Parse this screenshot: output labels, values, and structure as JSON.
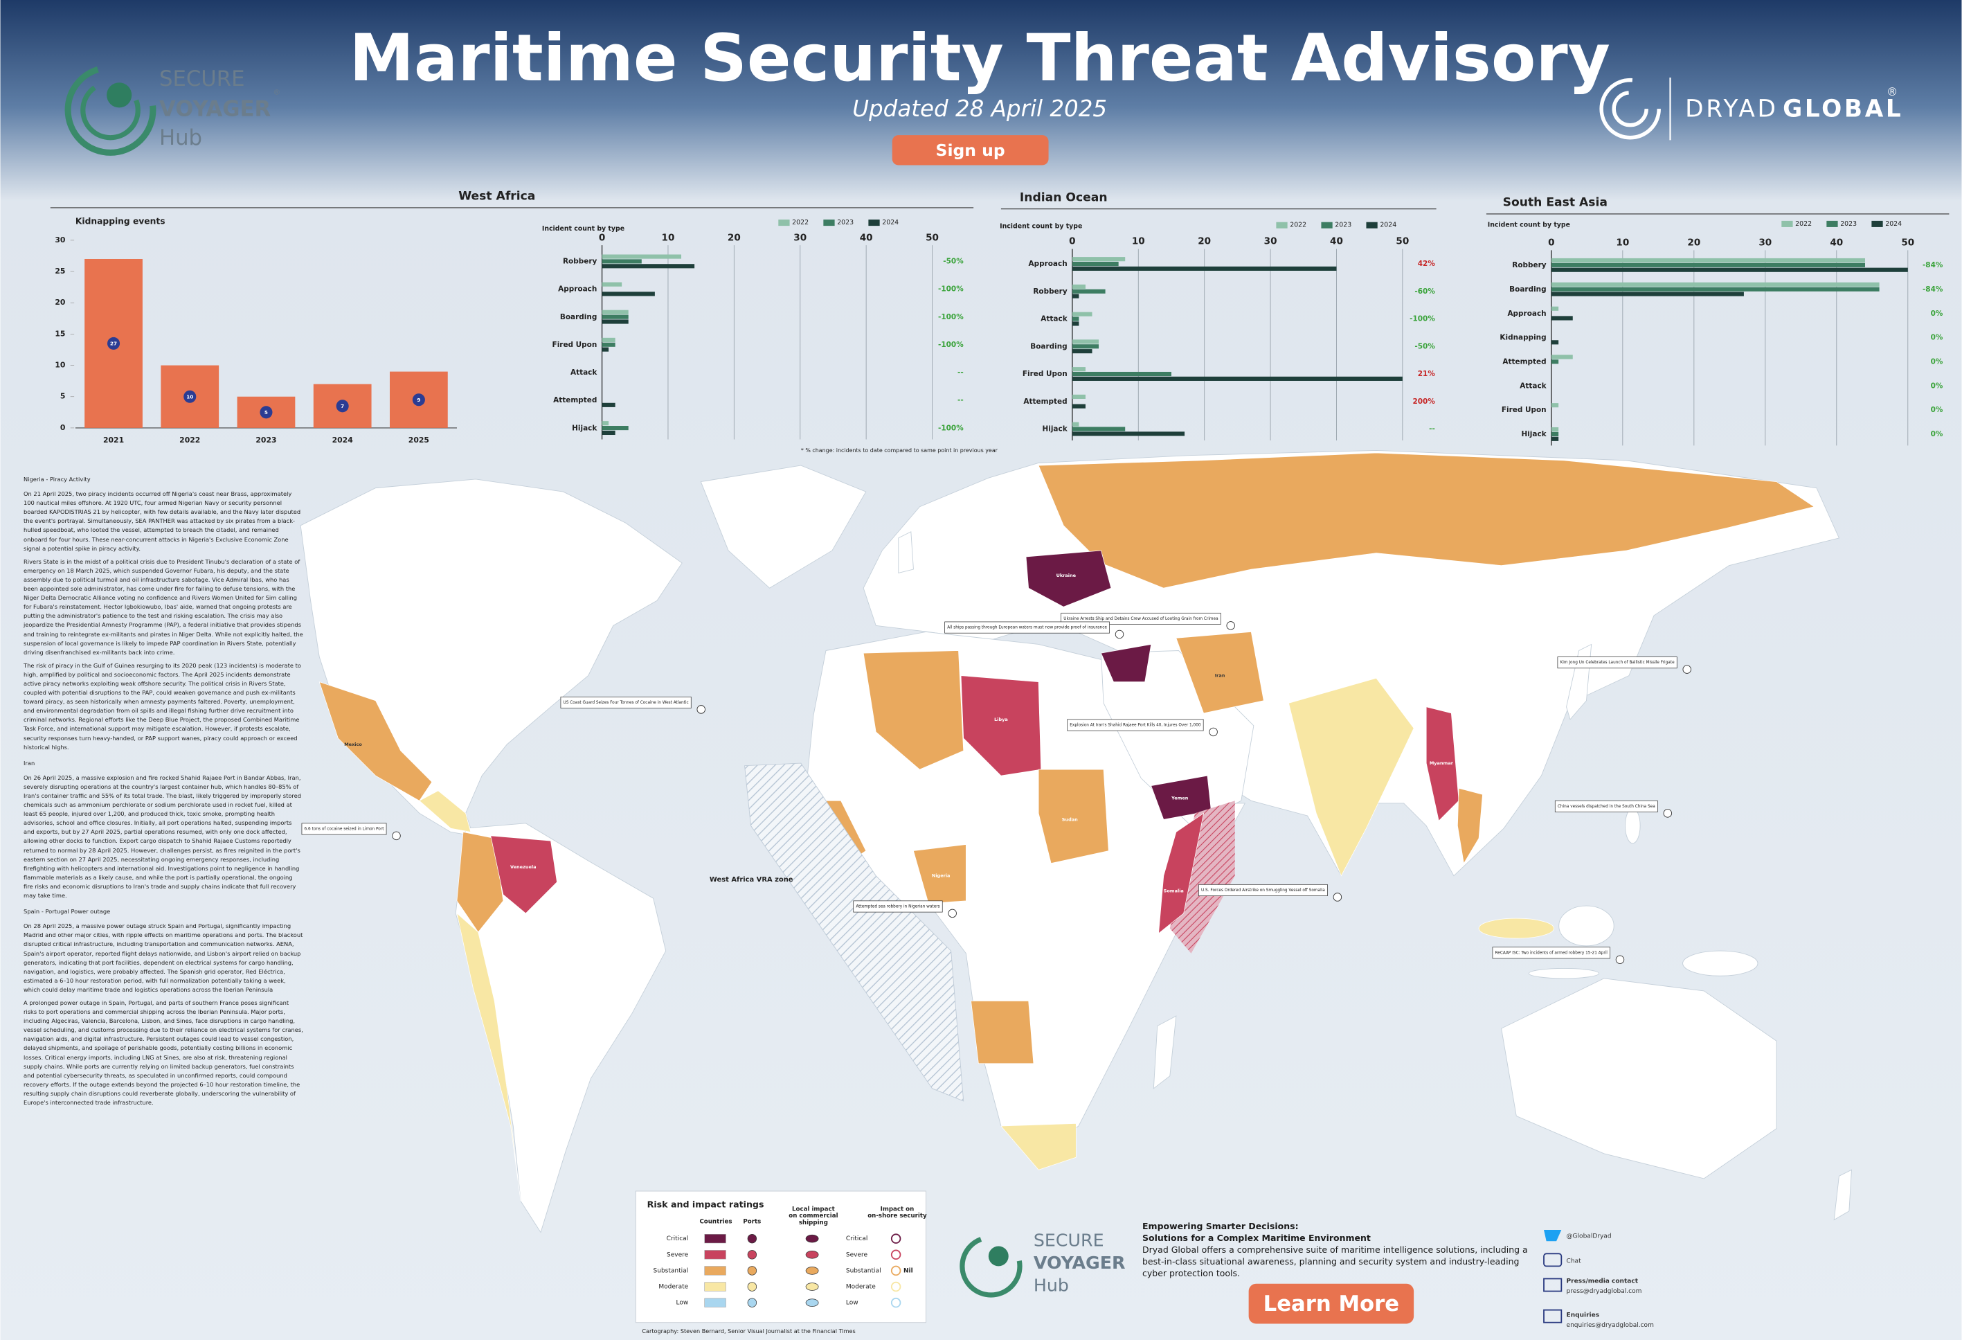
{
  "header": {
    "title": "Maritime Security Threat Advisory",
    "subtitle": "Updated 28 April 2025",
    "button": "Sign up",
    "left_logo": {
      "line1": "SECURE",
      "line2": "VOYAGER",
      "line3": "Hub",
      "mark": "®"
    },
    "right_logo": {
      "name": "DRYAD",
      "name2": "GLOBAL",
      "mark": "®"
    }
  },
  "chart_data": [
    {
      "type": "bar",
      "title": "Kidnapping events",
      "categories": [
        "2021",
        "2022",
        "2023",
        "2024",
        "2025"
      ],
      "values": [
        27,
        10,
        5,
        7,
        9
      ],
      "color": "#e8734f",
      "label_color": "#2b3c93",
      "ylim": [
        0,
        30
      ],
      "yticks": [
        0,
        5,
        10,
        15,
        20,
        25,
        30
      ]
    },
    {
      "type": "hbar",
      "title": "West Africa",
      "subtitle": "Incident count by type",
      "categories": [
        "Robbery",
        "Approach",
        "Boarding",
        "Fired Upon",
        "Attack",
        "Attempted",
        "Hijack"
      ],
      "series": [
        {
          "name": "2022",
          "color": "#8fc1a9",
          "values": [
            12,
            3,
            4,
            2,
            0,
            0,
            1
          ]
        },
        {
          "name": "2023",
          "color": "#3d7d62",
          "values": [
            6,
            0,
            4,
            2,
            0,
            0,
            4
          ]
        },
        {
          "name": "2024",
          "color": "#1e3f3a",
          "values": [
            14,
            8,
            4,
            1,
            0,
            2,
            2
          ]
        }
      ],
      "xlim": [
        0,
        50
      ],
      "xticks": [
        0,
        10,
        20,
        30,
        40,
        50
      ],
      "grid": true,
      "changes": [
        "-50%",
        "-100%",
        "-100%",
        "-100%",
        "--",
        "--",
        "-100%"
      ],
      "change_colors": [
        "#3aa33a",
        "#3aa33a",
        "#3aa33a",
        "#3aa33a",
        "#3aa33a",
        "#3aa33a",
        "#3aa33a"
      ]
    },
    {
      "type": "hbar",
      "title": "Indian Ocean",
      "subtitle": "Incident count by type",
      "categories": [
        "Approach",
        "Robbery",
        "Attack",
        "Boarding",
        "Fired Upon",
        "Attempted",
        "Hijack"
      ],
      "series": [
        {
          "name": "2022",
          "color": "#8fc1a9",
          "values": [
            8,
            2,
            3,
            4,
            2,
            2,
            1
          ]
        },
        {
          "name": "2023",
          "color": "#3d7d62",
          "values": [
            7,
            5,
            1,
            4,
            15,
            0,
            8
          ]
        },
        {
          "name": "2024",
          "color": "#1e3f3a",
          "values": [
            40,
            1,
            1,
            3,
            50,
            2,
            17
          ]
        }
      ],
      "xlim": [
        0,
        50
      ],
      "xticks": [
        0,
        10,
        20,
        30,
        40,
        50
      ],
      "grid": true,
      "changes": [
        "42%",
        "-60%",
        "-100%",
        "-50%",
        "21%",
        "200%",
        "--"
      ],
      "change_colors": [
        "#c62828",
        "#3aa33a",
        "#3aa33a",
        "#3aa33a",
        "#c62828",
        "#c62828",
        "#3aa33a"
      ]
    },
    {
      "type": "hbar",
      "title": "South East Asia",
      "subtitle": "Incident count by type",
      "categories": [
        "Robbery",
        "Boarding",
        "Approach",
        "Kidnapping",
        "Attempted",
        "Attack",
        "Fired Upon",
        "Hijack"
      ],
      "series": [
        {
          "name": "2022",
          "color": "#8fc1a9",
          "values": [
            44,
            46,
            1,
            0,
            3,
            0,
            1,
            1
          ]
        },
        {
          "name": "2023",
          "color": "#3d7d62",
          "values": [
            44,
            46,
            0,
            0,
            1,
            0,
            0,
            1
          ]
        },
        {
          "name": "2024",
          "color": "#1e3f3a",
          "values": [
            50,
            27,
            3,
            1,
            0,
            0,
            0,
            1
          ]
        }
      ],
      "xlim": [
        0,
        50
      ],
      "xticks": [
        0,
        10,
        20,
        30,
        40,
        50
      ],
      "grid": true,
      "changes": [
        "-84%",
        "-84%",
        "0%",
        "0%",
        "0%",
        "0%",
        "0%",
        "0%"
      ],
      "change_colors": [
        "#3aa33a",
        "#3aa33a",
        "#3aa33a",
        "#3aa33a",
        "#3aa33a",
        "#3aa33a",
        "#3aa33a",
        "#3aa33a"
      ]
    }
  ],
  "chart_note": "* % change: incidents to date compared to same point in previous year",
  "articles": [
    {
      "heading": "Nigeria - Piracy Activity",
      "paragraphs": [
        "On 21 April 2025, two piracy incidents occurred off Nigeria's coast near Brass, approximately 100 nautical miles offshore. At 1920 UTC, four armed Nigerian Navy or security personnel boarded KAPODISTRIAS 21 by helicopter, with few details available, and the Navy later disputed the event's portrayal. Simultaneously, SEA PANTHER was attacked by six pirates from a black-hulled speedboat, who looted the vessel, attempted to breach the citadel, and remained onboard for four hours. These near-concurrent attacks in Nigeria's Exclusive Economic Zone signal a potential spike in piracy activity.",
        "Rivers State is in the midst of a political crisis due to President Tinubu's declaration of a state of emergency on 18 March 2025, which suspended Governor Fubara, his deputy, and the state assembly due to political turmoil and oil infrastructure sabotage. Vice Admiral Ibas, who has been appointed sole administrator, has come under fire for failing to defuse tensions, with the Niger Delta Democratic Alliance voting no confidence and Rivers Women United for Sim calling for Fubara's reinstatement. Hector Igbokiowubo, Ibas' aide, warned that ongoing protests are putting the administrator's patience to the test and risking escalation. The crisis may also jeopardize the Presidential Amnesty Programme (PAP), a federal initiative that provides stipends and training to reintegrate ex-militants and pirates in Niger Delta. While not explicitly halted, the suspension of local governance is likely to impede PAP coordination in Rivers State, potentially driving disenfranchised ex-militants back into crime.",
        "The risk of piracy in the Gulf of Guinea resurging to its 2020 peak (123 incidents) is moderate to high, amplified by political and socioeconomic factors. The April 2025 incidents demonstrate active piracy networks exploiting weak offshore security. The political crisis in Rivers State, coupled with potential disruptions to the PAP, could weaken governance and push ex-militants toward piracy, as seen historically when amnesty payments faltered. Poverty, unemployment, and environmental degradation from oil spills and illegal fishing further drive recruitment into criminal networks. Regional efforts like the Deep Blue Project, the proposed Combined Maritime Task Force, and international support may mitigate escalation. However, if protests escalate, security responses turn heavy-handed, or PAP support wanes, piracy could approach or exceed historical highs."
      ]
    },
    {
      "heading": "Iran",
      "paragraphs": [
        "On 26 April 2025, a massive explosion and fire rocked Shahid Rajaee Port in Bandar Abbas, Iran, severely disrupting operations at the country's largest container hub, which handles 80–85% of Iran's container traffic and 55% of its total trade. The blast, likely triggered by improperly stored chemicals such as ammonium perchlorate or sodium perchlorate used in rocket fuel, killed at least 65 people, injured over 1,200, and produced thick, toxic smoke, prompting health advisories, school and office closures. Initially, all port operations halted, suspending imports and exports, but by 27 April 2025, partial operations resumed, with only one dock affected, allowing other docks to function. Export cargo dispatch to Shahid Rajaee Customs reportedly returned to normal by 28 April 2025. However, challenges persist, as fires reignited in the port's eastern section on 27 April 2025, necessitating ongoing emergency responses, including firefighting with helicopters and international aid. Investigations point to negligence in handling flammable materials as a likely cause, and while the port is partially operational, the ongoing fire risks and economic disruptions to Iran's trade and supply chains indicate that full recovery may take time."
      ]
    },
    {
      "heading": "Spain - Portugal Power outage",
      "paragraphs": [
        "On 28 April 2025, a massive power outage struck Spain and Portugal, significantly impacting Madrid and other major cities, with ripple effects on maritime operations and ports. The blackout disrupted critical infrastructure, including transportation and communication networks. AENA, Spain's airport operator, reported flight delays nationwide, and Lisbon's airport relied on backup generators, indicating that port facilities, dependent on electrical systems for cargo handling, navigation, and logistics, were probably affected. The Spanish grid operator, Red Eléctrica, estimated a 6–10 hour restoration period, with full normalization potentially taking a week, which could delay maritime trade and logistics operations across the Iberian Peninsula",
        "A prolonged power outage in Spain, Portugal, and parts of southern France poses significant risks to port operations and commercial shipping across the Iberian Peninsula. Major ports, including Algeciras, Valencia, Barcelona, Lisbon, and Sines, face disruptions in cargo handling, vessel scheduling, and customs processing due to their reliance on electrical systems for cranes, navigation aids, and digital infrastructure. Persistent outages could lead to vessel congestion, delayed shipments, and spoilage of perishable goods, potentially costing billions in economic losses. Critical energy imports, including LNG at Sines, are also at risk, threatening regional supply chains. While ports are currently relying on limited backup generators, fuel constraints and potential cybersecurity threats, as speculated in unconfirmed reports, could compound recovery efforts. If the outage extends beyond the projected 6–10 hour restoration timeline, the resulting supply chain disruptions could reverberate globally, underscoring the vulnerability of Europe's interconnected trade infrastructure."
      ]
    }
  ],
  "map": {
    "zone_label": "West Africa VRA zone",
    "country_labels": [
      "Ukraine",
      "Libya",
      "Venezuela",
      "Yemen",
      "Somalia",
      "Myanmar",
      "Sudan",
      "Mexico",
      "Nigeria",
      "Iran"
    ],
    "callouts": [
      "US Coast Guard Seizes Four Tonnes of Cocaine in West Atlantic",
      "Ukraine Arrests Ship and Detains Crew Accused of Looting Grain from Crimea",
      "All ships passing through European waters must now provide proof of insurance",
      "Explosion At Iran's Shahid Rajaee Port Kills 40, Injures Over 1,000",
      "Attempted sea robbery in Nigerian waters",
      "Kim Jong Un Celebrates Launch of Ballistic Missile Frigate",
      "China vessels dispatched in the South China Sea",
      "ReCAAP ISC: Two incidents of armed robbery 15-21 April",
      "U.S. Forces Ordered Airstrike on Smuggling Vessel off Somalia",
      "6.6 tons of cocaine seized in Limon Port"
    ]
  },
  "legend": {
    "title": "Risk and impact ratings",
    "columns": [
      "Countries",
      "Ports",
      "Local impact on commercial shipping",
      "Impact on on-shore security"
    ],
    "levels": [
      "Critical",
      "Severe",
      "Substantial",
      "Moderate",
      "Low"
    ],
    "colors": [
      "#6b1a45",
      "#c8435e",
      "#e9a95e",
      "#f8e7a4",
      "#a9d6ef"
    ],
    "nil": "Nil"
  },
  "footer": {
    "heading": "Empowering Smarter Decisions:",
    "subheading": "Solutions for a Complex Maritime Environment",
    "text": "Dryad Global offers a comprehensive suite of maritime intelligence solutions, including a best-in-class situational awareness, planning and security system and industry-leading cyber protection tools.",
    "button": "Learn More",
    "twitter": "@GlobalDryad",
    "chat": "Chat",
    "press_label": "Press/media contact",
    "press_email": "press@dryadglobal.com",
    "enquiries_label": "Enquiries",
    "enquiries_email": "enquiries@dryadglobal.com"
  },
  "credit": "Cartography: Steven Bernard, Senior Visual Journalist at the Financial Times"
}
